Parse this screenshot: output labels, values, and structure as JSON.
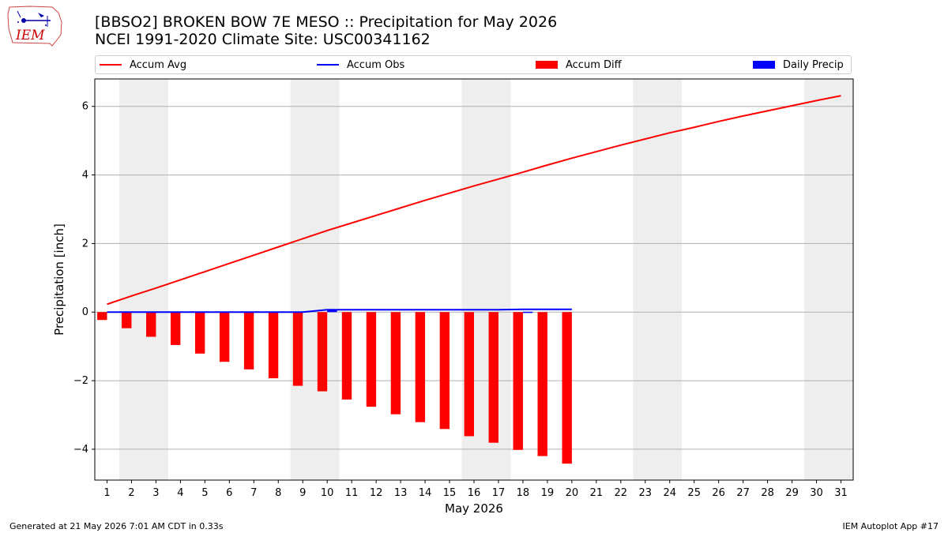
{
  "title": {
    "line1": "[BBSO2] BROKEN BOW 7E MESO :: Precipitation for May 2026",
    "line2": "NCEI 1991-2020 Climate Site: USC00341162"
  },
  "logo": {
    "text": "IEM"
  },
  "legend": {
    "items": [
      {
        "label": "Accum Avg",
        "kind": "line",
        "color": "#ff0000"
      },
      {
        "label": "Accum Obs",
        "kind": "line",
        "color": "#0000ff"
      },
      {
        "label": "Accum Diff",
        "kind": "box",
        "color": "#ff0000"
      },
      {
        "label": "Daily Precip",
        "kind": "box",
        "color": "#0000ff"
      }
    ]
  },
  "footer": {
    "left": "Generated at 21 May 2026 7:01 AM CDT in 0.33s",
    "right": "IEM Autoplot App #17"
  },
  "chart_data": {
    "type": "bar",
    "xlabel": "May 2026",
    "ylabel": "Precipitation [inch]",
    "xlim": [
      0.5,
      31.5
    ],
    "ylim": [
      -4.9,
      6.8
    ],
    "yticks": [
      -4,
      -2,
      0,
      2,
      4,
      6
    ],
    "ytick_labels": [
      "−4",
      "−2",
      "0",
      "2",
      "4",
      "6"
    ],
    "categories": [
      "1",
      "2",
      "3",
      "4",
      "5",
      "6",
      "7",
      "8",
      "9",
      "10",
      "11",
      "12",
      "13",
      "14",
      "15",
      "16",
      "17",
      "18",
      "19",
      "20",
      "21",
      "22",
      "23",
      "24",
      "25",
      "26",
      "27",
      "28",
      "29",
      "30",
      "31"
    ],
    "grid": "horizontal",
    "weekend_shading": [
      [
        1.5,
        3.5
      ],
      [
        8.5,
        10.5
      ],
      [
        15.5,
        17.5
      ],
      [
        22.5,
        24.5
      ],
      [
        29.5,
        31.5
      ]
    ],
    "series": [
      {
        "name": "Accum Avg",
        "kind": "line",
        "color": "#ff0000",
        "x": [
          1,
          2,
          3,
          4,
          5,
          6,
          7,
          8,
          9,
          10,
          11,
          12,
          13,
          14,
          15,
          16,
          17,
          18,
          19,
          20,
          21,
          22,
          23,
          24,
          25,
          26,
          27,
          28,
          29,
          30,
          31
        ],
        "values": [
          0.23,
          0.47,
          0.7,
          0.94,
          1.18,
          1.42,
          1.66,
          1.9,
          2.14,
          2.38,
          2.6,
          2.82,
          3.04,
          3.26,
          3.47,
          3.68,
          3.88,
          4.08,
          4.29,
          4.49,
          4.68,
          4.87,
          5.05,
          5.23,
          5.39,
          5.56,
          5.72,
          5.87,
          6.02,
          6.17,
          6.31
        ]
      },
      {
        "name": "Accum Obs",
        "kind": "line",
        "color": "#0000ff",
        "x": [
          1,
          2,
          3,
          4,
          5,
          6,
          7,
          8,
          9,
          10,
          11,
          12,
          13,
          14,
          15,
          16,
          17,
          18,
          19,
          20
        ],
        "values": [
          0,
          0,
          0,
          0,
          0,
          0,
          0,
          0,
          0,
          0.07,
          0.07,
          0.07,
          0.07,
          0.07,
          0.07,
          0.07,
          0.07,
          0.08,
          0.08,
          0.08
        ]
      },
      {
        "name": "Accum Diff",
        "kind": "bar",
        "color": "#ff0000",
        "offset": -0.2,
        "x": [
          1,
          2,
          3,
          4,
          5,
          6,
          7,
          8,
          9,
          10,
          11,
          12,
          13,
          14,
          15,
          16,
          17,
          18,
          19,
          20
        ],
        "values": [
          -0.23,
          -0.47,
          -0.72,
          -0.96,
          -1.21,
          -1.45,
          -1.67,
          -1.93,
          -2.15,
          -2.31,
          -2.55,
          -2.76,
          -2.98,
          -3.21,
          -3.41,
          -3.62,
          -3.81,
          -4.02,
          -4.2,
          -4.42
        ]
      },
      {
        "name": "Daily Precip",
        "kind": "bar",
        "color": "#0000ff",
        "offset": 0.2,
        "x": [
          1,
          2,
          3,
          4,
          5,
          6,
          7,
          8,
          9,
          10,
          11,
          12,
          13,
          14,
          15,
          16,
          17,
          18,
          19,
          20
        ],
        "values": [
          0,
          0,
          0,
          0,
          0,
          0,
          0,
          0,
          0,
          0.07,
          0,
          0,
          0,
          0,
          0,
          0,
          0,
          0.01,
          0,
          0
        ]
      }
    ]
  }
}
